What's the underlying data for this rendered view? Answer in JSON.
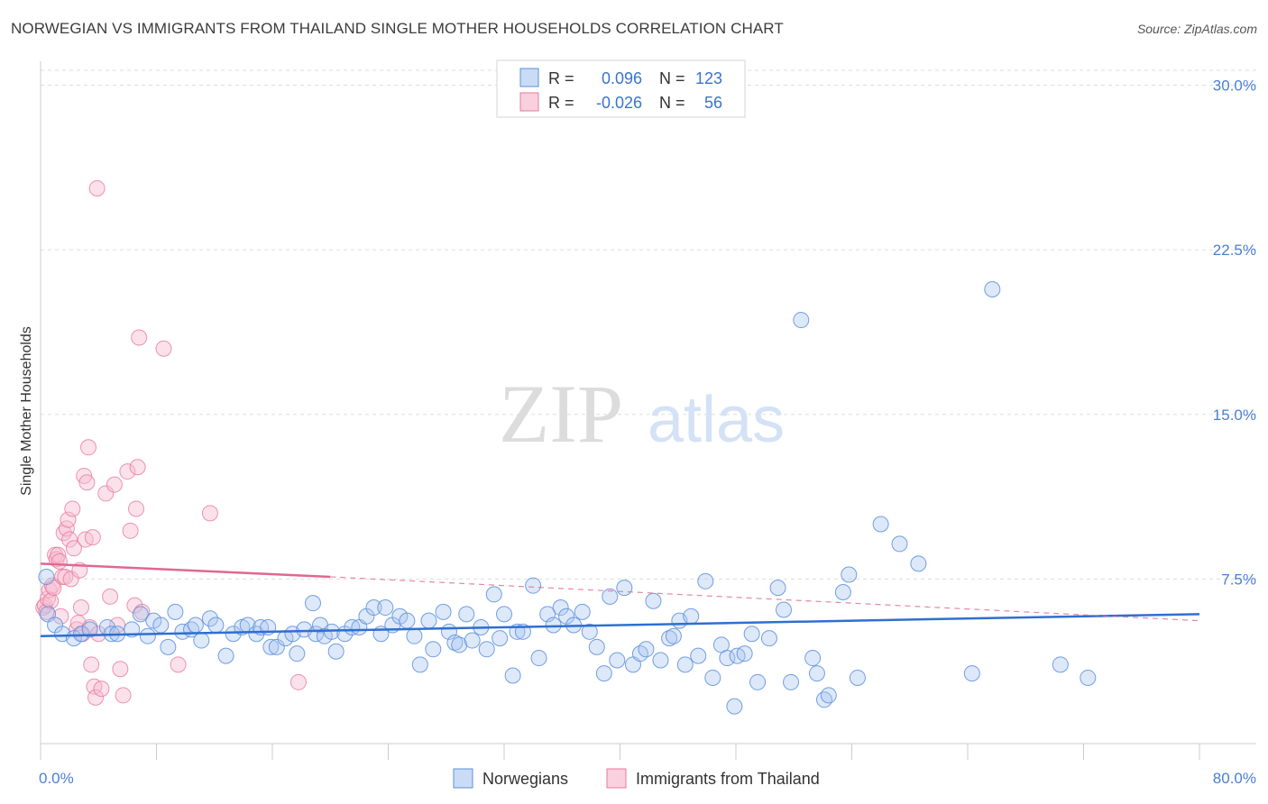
{
  "title": "NORWEGIAN VS IMMIGRANTS FROM THAILAND SINGLE MOTHER HOUSEHOLDS CORRELATION CHART",
  "source": "Source: ZipAtlas.com",
  "colors": {
    "blue": "#5b8fe0",
    "blue_fill": "#a9c6f0",
    "blue_line": "#2f6fd0",
    "pink": "#e87a9e",
    "pink_fill": "#f6bcd0",
    "pink_line": "#e06890"
  },
  "watermark": {
    "zip": "ZIP",
    "atlas": "atlas"
  },
  "legend": {
    "rows": [
      {
        "r_label": "R =",
        "r_value": "0.096",
        "n_label": "N =",
        "n_value": "123"
      },
      {
        "r_label": "R =",
        "r_value": "-0.026",
        "n_label": "N =",
        "n_value": "56"
      }
    ]
  },
  "chart_data": {
    "type": "scatter",
    "title": "NORWEGIAN VS IMMIGRANTS FROM THAILAND SINGLE MOTHER HOUSEHOLDS CORRELATION CHART",
    "xlabel": "",
    "ylabel": "Single Mother Households",
    "xlim": [
      0,
      80
    ],
    "ylim": [
      0,
      31.5
    ],
    "x_tick_labels": [
      "0.0%",
      "80.0%"
    ],
    "y_ticks": [
      7.5,
      15.0,
      22.5,
      30.0
    ],
    "y_tick_labels": [
      "7.5%",
      "15.0%",
      "22.5%",
      "30.0%"
    ],
    "series": [
      {
        "name": "Norwegians",
        "r": 0.096,
        "n": 123,
        "trend": {
          "x0": 0,
          "y0": 4.9,
          "x1": 80,
          "y1": 5.9
        },
        "points": [
          [
            0.4,
            7.6
          ],
          [
            0.5,
            5.9
          ],
          [
            1.0,
            5.4
          ],
          [
            1.5,
            5.0
          ],
          [
            2.3,
            4.8
          ],
          [
            2.8,
            5.0
          ],
          [
            3.4,
            5.2
          ],
          [
            4.6,
            5.3
          ],
          [
            4.9,
            5.0
          ],
          [
            5.3,
            5.0
          ],
          [
            6.3,
            5.2
          ],
          [
            6.9,
            5.9
          ],
          [
            7.4,
            4.9
          ],
          [
            7.8,
            5.6
          ],
          [
            8.3,
            5.4
          ],
          [
            8.8,
            4.4
          ],
          [
            9.3,
            6.0
          ],
          [
            9.8,
            5.1
          ],
          [
            10.4,
            5.2
          ],
          [
            10.7,
            5.4
          ],
          [
            11.1,
            4.7
          ],
          [
            11.7,
            5.7
          ],
          [
            12.1,
            5.4
          ],
          [
            12.8,
            4.0
          ],
          [
            13.3,
            5.0
          ],
          [
            13.9,
            5.3
          ],
          [
            14.3,
            5.4
          ],
          [
            14.9,
            5.0
          ],
          [
            15.2,
            5.3
          ],
          [
            15.7,
            5.3
          ],
          [
            15.9,
            4.4
          ],
          [
            16.3,
            4.4
          ],
          [
            16.9,
            4.8
          ],
          [
            17.4,
            5.0
          ],
          [
            17.7,
            4.1
          ],
          [
            18.2,
            5.2
          ],
          [
            18.8,
            6.4
          ],
          [
            19.0,
            5.0
          ],
          [
            19.3,
            5.4
          ],
          [
            19.6,
            4.9
          ],
          [
            20.1,
            5.1
          ],
          [
            20.4,
            4.2
          ],
          [
            21.0,
            5.0
          ],
          [
            21.5,
            5.3
          ],
          [
            22.0,
            5.3
          ],
          [
            22.5,
            5.8
          ],
          [
            23.0,
            6.2
          ],
          [
            23.5,
            5.0
          ],
          [
            23.8,
            6.2
          ],
          [
            24.3,
            5.4
          ],
          [
            24.8,
            5.8
          ],
          [
            25.3,
            5.6
          ],
          [
            25.8,
            4.9
          ],
          [
            26.2,
            3.6
          ],
          [
            26.8,
            5.6
          ],
          [
            27.1,
            4.3
          ],
          [
            27.8,
            6.0
          ],
          [
            28.2,
            5.1
          ],
          [
            28.6,
            4.6
          ],
          [
            28.9,
            4.5
          ],
          [
            29.4,
            5.9
          ],
          [
            29.8,
            4.7
          ],
          [
            30.4,
            5.3
          ],
          [
            30.8,
            4.3
          ],
          [
            31.3,
            6.8
          ],
          [
            31.7,
            4.8
          ],
          [
            32.0,
            5.9
          ],
          [
            32.6,
            3.1
          ],
          [
            32.9,
            5.1
          ],
          [
            33.3,
            5.1
          ],
          [
            34.0,
            7.2
          ],
          [
            34.4,
            3.9
          ],
          [
            35.0,
            5.9
          ],
          [
            35.4,
            5.4
          ],
          [
            35.9,
            6.2
          ],
          [
            36.3,
            5.8
          ],
          [
            36.8,
            5.4
          ],
          [
            37.4,
            6.0
          ],
          [
            37.9,
            5.1
          ],
          [
            38.4,
            4.4
          ],
          [
            38.9,
            3.2
          ],
          [
            39.3,
            6.7
          ],
          [
            39.8,
            3.8
          ],
          [
            40.3,
            7.1
          ],
          [
            40.9,
            3.6
          ],
          [
            41.4,
            4.1
          ],
          [
            41.8,
            4.3
          ],
          [
            42.3,
            6.5
          ],
          [
            42.8,
            3.8
          ],
          [
            43.4,
            4.8
          ],
          [
            43.7,
            4.9
          ],
          [
            44.1,
            5.6
          ],
          [
            44.5,
            3.6
          ],
          [
            44.9,
            5.8
          ],
          [
            45.4,
            4.0
          ],
          [
            45.9,
            7.4
          ],
          [
            46.4,
            3.0
          ],
          [
            47.0,
            4.5
          ],
          [
            47.4,
            3.9
          ],
          [
            47.9,
            1.7
          ],
          [
            48.1,
            4.0
          ],
          [
            48.6,
            4.1
          ],
          [
            49.1,
            5.0
          ],
          [
            49.5,
            2.8
          ],
          [
            50.3,
            4.8
          ],
          [
            50.9,
            7.1
          ],
          [
            51.3,
            6.1
          ],
          [
            51.8,
            2.8
          ],
          [
            52.5,
            19.3
          ],
          [
            53.3,
            3.9
          ],
          [
            53.6,
            3.2
          ],
          [
            54.1,
            2.0
          ],
          [
            54.4,
            2.2
          ],
          [
            55.4,
            6.9
          ],
          [
            55.8,
            7.7
          ],
          [
            56.4,
            3.0
          ],
          [
            58.0,
            10.0
          ],
          [
            59.3,
            9.1
          ],
          [
            60.6,
            8.2
          ],
          [
            64.3,
            3.2
          ],
          [
            65.7,
            20.7
          ],
          [
            70.4,
            3.6
          ],
          [
            72.3,
            3.0
          ]
        ]
      },
      {
        "name": "Immigrants from Thailand",
        "r": -0.026,
        "n": 56,
        "trend": {
          "x0": 0,
          "y0": 8.2,
          "x1": 20,
          "y1": 7.6,
          "dash_to_x": 80,
          "dash_to_y": 5.6
        },
        "points": [
          [
            0.2,
            6.2
          ],
          [
            0.3,
            6.3
          ],
          [
            0.4,
            6.0
          ],
          [
            0.5,
            6.6
          ],
          [
            0.6,
            7.0
          ],
          [
            0.7,
            6.5
          ],
          [
            0.8,
            7.2
          ],
          [
            0.9,
            7.1
          ],
          [
            1.0,
            8.6
          ],
          [
            1.1,
            8.4
          ],
          [
            1.2,
            8.6
          ],
          [
            1.3,
            8.3
          ],
          [
            1.4,
            5.8
          ],
          [
            1.5,
            7.6
          ],
          [
            1.6,
            9.6
          ],
          [
            1.7,
            7.6
          ],
          [
            1.8,
            9.8
          ],
          [
            1.9,
            10.2
          ],
          [
            2.0,
            9.3
          ],
          [
            2.1,
            7.5
          ],
          [
            2.2,
            10.7
          ],
          [
            2.3,
            8.9
          ],
          [
            2.5,
            5.2
          ],
          [
            2.6,
            5.5
          ],
          [
            2.7,
            7.9
          ],
          [
            2.8,
            6.2
          ],
          [
            2.9,
            5.0
          ],
          [
            3.0,
            12.2
          ],
          [
            3.1,
            9.3
          ],
          [
            3.2,
            11.9
          ],
          [
            3.3,
            13.5
          ],
          [
            3.4,
            5.3
          ],
          [
            3.5,
            3.6
          ],
          [
            3.6,
            9.4
          ],
          [
            3.7,
            2.6
          ],
          [
            3.8,
            2.1
          ],
          [
            3.9,
            25.3
          ],
          [
            4.0,
            5.0
          ],
          [
            4.2,
            2.5
          ],
          [
            4.5,
            11.4
          ],
          [
            4.8,
            6.7
          ],
          [
            5.1,
            11.8
          ],
          [
            5.3,
            5.4
          ],
          [
            5.5,
            3.4
          ],
          [
            5.7,
            2.2
          ],
          [
            6.0,
            12.4
          ],
          [
            6.2,
            9.7
          ],
          [
            6.5,
            6.3
          ],
          [
            6.6,
            10.7
          ],
          [
            6.7,
            12.6
          ],
          [
            6.8,
            18.5
          ],
          [
            7.0,
            6.0
          ],
          [
            8.5,
            18.0
          ],
          [
            9.5,
            3.6
          ],
          [
            11.7,
            10.5
          ],
          [
            17.8,
            2.8
          ]
        ]
      }
    ]
  },
  "bottom_legend": [
    "Norwegians",
    "Immigrants from Thailand"
  ]
}
